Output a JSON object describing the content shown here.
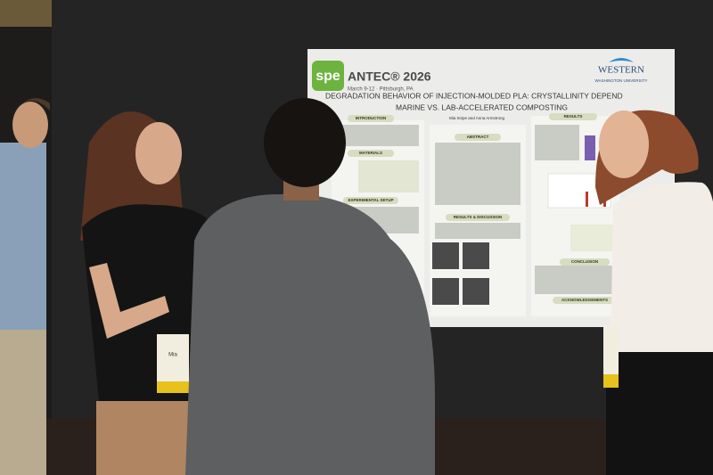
{
  "poster": {
    "logo": "spe",
    "conference": "ANTEC® 2026",
    "dates": "March 9-12 · Pittsburgh, PA",
    "title_line1": "DEGRADATION BEHAVIOR OF INJECTION-MOLDED PLA: CRYSTALLINITY DEPEND",
    "title_line2": "MARINE VS. LAB-ACCELERATED COMPOSTING",
    "university": [
      "WESTERN",
      "WASHINGTON UNIVERSITY"
    ],
    "authors": "Mia Snipe and Anna Armstrong",
    "sections": [
      "INTRODUCTION",
      "ABSTRACT",
      "MATERIALS",
      "EXPERIMENTAL SETUP",
      "RESULTS & DISCUSSION",
      "CONCLUSION",
      "ACKNOWLEDGEMENTS",
      "RESULTS"
    ]
  },
  "badge": {
    "name": "Mia"
  }
}
